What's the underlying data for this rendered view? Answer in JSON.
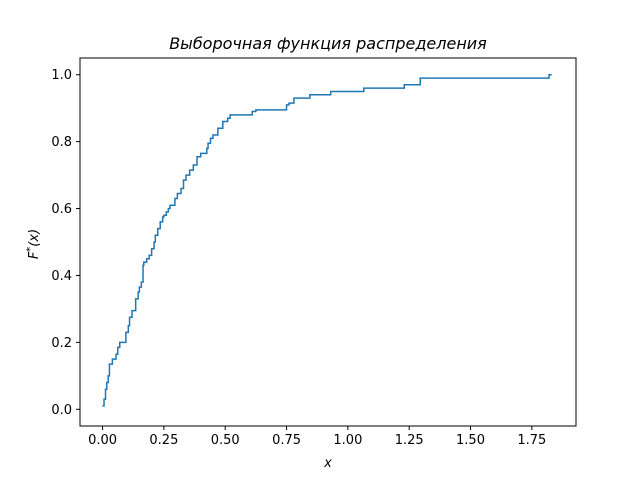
{
  "chart_data": {
    "type": "line",
    "step": "post",
    "title": "Выборочная функция распределения",
    "xlabel": "x",
    "ylabel": "F*(x)",
    "xlim": [
      -0.092,
      1.93
    ],
    "ylim": [
      -0.05,
      1.05
    ],
    "xticks": [
      0.0,
      0.25,
      0.5,
      0.75,
      1.0,
      1.25,
      1.5,
      1.75
    ],
    "xtick_labels": [
      "0.00",
      "0.25",
      "0.50",
      "0.75",
      "1.00",
      "1.25",
      "1.50",
      "1.75"
    ],
    "yticks": [
      0.0,
      0.2,
      0.4,
      0.6,
      0.8,
      1.0
    ],
    "ytick_labels": [
      "0.0",
      "0.2",
      "0.4",
      "0.6",
      "0.8",
      "1.0"
    ],
    "grid": false,
    "series": [
      {
        "color": "#1f77b4",
        "x": [
          0.0,
          0.006,
          0.012,
          0.017,
          0.023,
          0.028,
          0.04,
          0.055,
          0.062,
          0.07,
          0.08,
          0.095,
          0.105,
          0.11,
          0.12,
          0.135,
          0.145,
          0.15,
          0.158,
          0.165,
          0.168,
          0.175,
          0.18,
          0.19,
          0.2,
          0.21,
          0.215,
          0.225,
          0.235,
          0.245,
          0.25,
          0.26,
          0.268,
          0.275,
          0.295,
          0.305,
          0.32,
          0.33,
          0.34,
          0.355,
          0.37,
          0.385,
          0.4,
          0.425,
          0.43,
          0.44,
          0.45,
          0.47,
          0.49,
          0.51,
          0.52,
          0.53,
          0.61,
          0.625,
          0.75,
          0.76,
          0.78,
          0.845,
          0.93,
          1.065,
          1.23,
          1.295,
          1.82,
          1.83
        ],
        "y": [
          0.01,
          0.03,
          0.06,
          0.08,
          0.1,
          0.135,
          0.15,
          0.165,
          0.185,
          0.2,
          0.2,
          0.23,
          0.25,
          0.275,
          0.295,
          0.33,
          0.35,
          0.365,
          0.38,
          0.43,
          0.44,
          0.44,
          0.45,
          0.46,
          0.48,
          0.5,
          0.52,
          0.54,
          0.56,
          0.575,
          0.58,
          0.59,
          0.6,
          0.61,
          0.63,
          0.645,
          0.66,
          0.685,
          0.7,
          0.715,
          0.73,
          0.755,
          0.765,
          0.78,
          0.795,
          0.81,
          0.82,
          0.84,
          0.86,
          0.87,
          0.88,
          0.88,
          0.89,
          0.895,
          0.91,
          0.915,
          0.93,
          0.94,
          0.95,
          0.96,
          0.97,
          0.99,
          1.0,
          1.0
        ]
      }
    ]
  }
}
